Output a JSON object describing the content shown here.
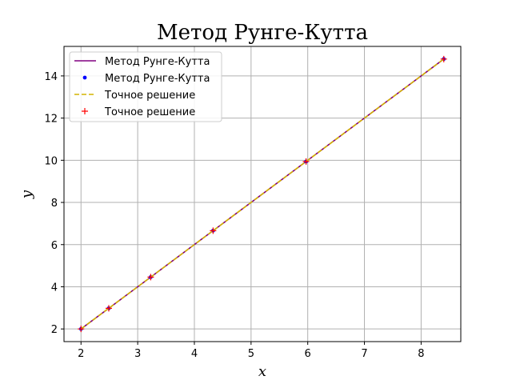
{
  "chart_data": {
    "type": "line",
    "title": "Метод Рунге-Кутта",
    "xlabel": "x",
    "ylabel": "y",
    "xlim": [
      1.7,
      8.7
    ],
    "ylim": [
      1.4,
      15.4
    ],
    "x_ticks": [
      2,
      3,
      4,
      5,
      6,
      7,
      8
    ],
    "y_ticks": [
      2,
      4,
      6,
      8,
      10,
      12,
      14
    ],
    "grid": true,
    "legend_position": "top-left",
    "series": [
      {
        "name": "Метод Рунге-Кутта",
        "style": "line",
        "color": "#800080",
        "x": [
          2.0,
          2.49,
          3.23,
          4.33,
          5.97,
          8.4
        ],
        "y": [
          2.0,
          2.98,
          4.46,
          6.66,
          9.94,
          14.8
        ]
      },
      {
        "name": "Метод Рунге-Кутта",
        "style": "point",
        "color": "#0000ff",
        "x": [
          2.0,
          2.49,
          3.23,
          4.33,
          5.97,
          8.4
        ],
        "y": [
          2.0,
          2.98,
          4.46,
          6.66,
          9.94,
          14.8
        ]
      },
      {
        "name": "Точное решение",
        "style": "dashed",
        "color": "#d4b400",
        "x": [
          2.0,
          2.49,
          3.23,
          4.33,
          5.97,
          8.4
        ],
        "y": [
          2.0,
          2.98,
          4.46,
          6.66,
          9.94,
          14.8
        ]
      },
      {
        "name": "Точное решение",
        "style": "plus",
        "color": "#ff0000",
        "x": [
          2.0,
          2.49,
          3.23,
          4.33,
          5.97,
          8.4
        ],
        "y": [
          2.0,
          2.98,
          4.46,
          6.66,
          9.94,
          14.8
        ]
      }
    ]
  }
}
